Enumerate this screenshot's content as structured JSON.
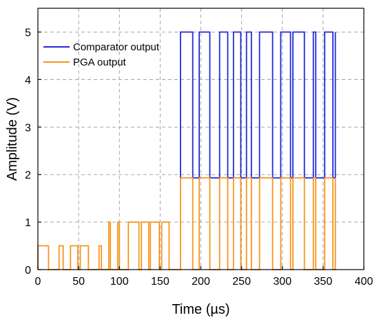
{
  "chart_data": {
    "type": "line",
    "title": "",
    "xlabel": "Time (µs)",
    "ylabel": "Amplitude (V)",
    "xlim": [
      0,
      400
    ],
    "ylim": [
      0,
      5.5
    ],
    "x_ticks": [
      0,
      50,
      100,
      150,
      200,
      250,
      300,
      350,
      400
    ],
    "y_ticks": [
      0,
      1,
      2,
      3,
      4,
      5
    ],
    "grid": true,
    "legend_position": "top-left",
    "series": [
      {
        "name": "Comparator output",
        "color": "#1f2ad6",
        "x": [
          175,
          175,
          190,
          190,
          198,
          198,
          211,
          211,
          223,
          223,
          233,
          233,
          240,
          240,
          249,
          249,
          256,
          256,
          262,
          262,
          272,
          272,
          288,
          288,
          298,
          298,
          310,
          310,
          313,
          313,
          327,
          327,
          338,
          338,
          341,
          341,
          352,
          352,
          362,
          362,
          365,
          365
        ],
        "y": [
          1.93,
          5.0,
          5.0,
          1.93,
          1.93,
          5.0,
          5.0,
          1.93,
          1.93,
          5.0,
          5.0,
          1.93,
          1.93,
          5.0,
          5.0,
          1.93,
          1.93,
          5.0,
          5.0,
          1.93,
          1.93,
          5.0,
          5.0,
          1.93,
          1.93,
          5.0,
          5.0,
          1.93,
          1.93,
          5.0,
          5.0,
          1.93,
          1.93,
          5.0,
          5.0,
          1.93,
          1.93,
          5.0,
          5.0,
          1.93,
          1.93,
          5.0
        ]
      },
      {
        "name": "PGA output",
        "color": "#f7941d",
        "x": [
          0,
          0,
          13,
          13,
          26,
          26,
          31,
          31,
          40,
          40,
          49,
          49,
          52,
          52,
          62,
          62,
          75,
          75,
          78,
          78,
          87,
          87,
          89,
          89,
          98,
          98,
          100,
          100,
          111,
          111,
          124,
          124,
          127,
          127,
          136,
          136,
          138,
          138,
          149,
          149,
          152,
          152,
          161,
          161,
          175,
          175,
          190,
          190,
          198,
          198,
          211,
          211,
          223,
          223,
          233,
          233,
          240,
          240,
          249,
          249,
          256,
          256,
          262,
          262,
          272,
          272,
          288,
          288,
          298,
          298,
          310,
          310,
          313,
          313,
          327,
          327,
          338,
          338,
          341,
          341,
          352,
          352,
          362,
          362,
          365,
          365
        ],
        "y": [
          0,
          0.5,
          0.5,
          0,
          0,
          0.5,
          0.5,
          0,
          0,
          0.5,
          0.5,
          0,
          0,
          0.5,
          0.5,
          0,
          0,
          0.5,
          0.5,
          0,
          0,
          1.0,
          1.0,
          0,
          0,
          1.0,
          1.0,
          0,
          0,
          1.0,
          1.0,
          0,
          0,
          1.0,
          1.0,
          0,
          0,
          1.0,
          1.0,
          0,
          0,
          1.0,
          1.0,
          0,
          0,
          1.93,
          1.93,
          0,
          0,
          1.93,
          1.93,
          0,
          0,
          1.93,
          1.93,
          0,
          0,
          1.93,
          1.93,
          0,
          0,
          1.93,
          1.93,
          0,
          0,
          1.93,
          1.93,
          0,
          0,
          1.93,
          1.93,
          0,
          0,
          1.93,
          1.93,
          0,
          0,
          1.93,
          1.93,
          0,
          0,
          1.93,
          1.93,
          0,
          0,
          1.93
        ]
      }
    ]
  }
}
